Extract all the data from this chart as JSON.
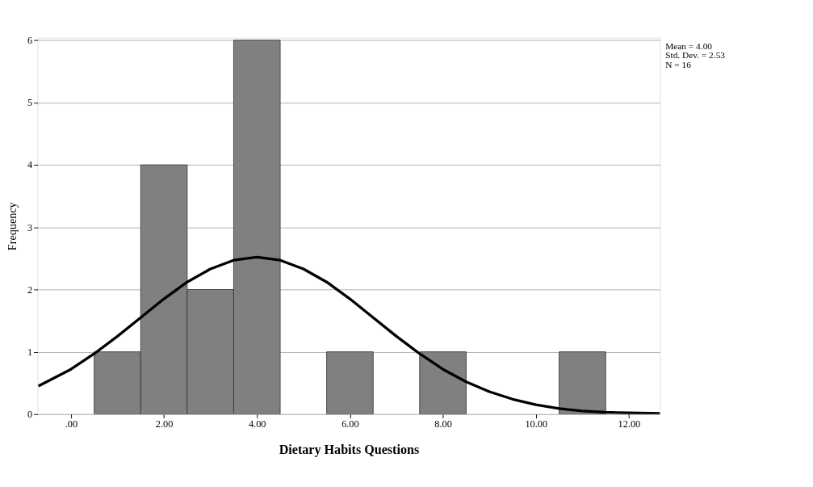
{
  "chart_data": {
    "type": "histogram",
    "xlabel": "Dietary Habits Questions",
    "ylabel": "Frequency",
    "bins": [
      0.5,
      1.5,
      2.5,
      3.5,
      4.5,
      5.5,
      6.5,
      7.5,
      8.5,
      9.5,
      10.5,
      11.5
    ],
    "values": [
      1,
      4,
      2,
      6,
      0,
      1,
      0,
      1,
      0,
      0,
      1
    ],
    "color": "#808080",
    "series": [
      {
        "type": "line",
        "color": "#000000",
        "x": [
          -0.7,
          0,
          0.5,
          1,
          1.5,
          2,
          2.5,
          3,
          3.5,
          4,
          4.5,
          5,
          5.5,
          6,
          6.5,
          7,
          7.5,
          8,
          8.5,
          9,
          9.5,
          10,
          10.5,
          11,
          11.5,
          12,
          12.67
        ],
        "values": [
          0.45,
          0.72,
          0.97,
          1.25,
          1.55,
          1.85,
          2.12,
          2.33,
          2.47,
          2.52,
          2.47,
          2.33,
          2.12,
          1.85,
          1.55,
          1.25,
          0.97,
          0.72,
          0.52,
          0.36,
          0.24,
          0.15,
          0.09,
          0.05,
          0.03,
          0.02,
          0.01
        ]
      }
    ],
    "xlim": [
      -0.72,
      12.67
    ],
    "xticks": [
      {
        "value": 0,
        "label": ".00"
      },
      {
        "value": 2,
        "label": "2.00"
      },
      {
        "value": 4,
        "label": "4.00"
      },
      {
        "value": 6,
        "label": "6.00"
      },
      {
        "value": 8,
        "label": "8.00"
      },
      {
        "value": 10,
        "label": "10.00"
      },
      {
        "value": 12,
        "label": "12.00"
      }
    ],
    "ylim": [
      0,
      6.04
    ],
    "yticks": [
      0,
      1,
      2,
      3,
      4,
      5,
      6
    ],
    "grid": "y",
    "annotations": [
      "Mean = 4.00",
      "Std. Dev. = 2.53",
      "N = 16"
    ]
  }
}
